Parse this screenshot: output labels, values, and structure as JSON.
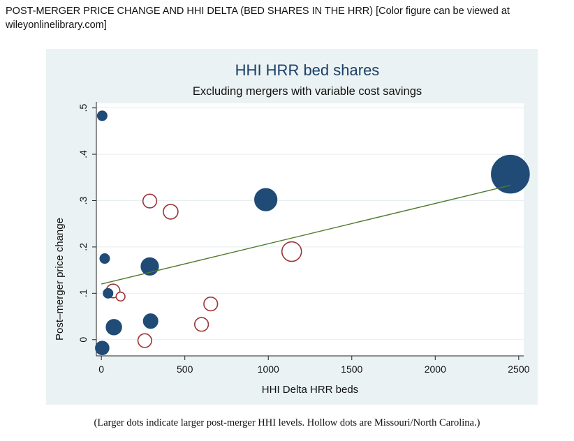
{
  "caption": "POST-MERGER PRICE CHANGE AND HHI DELTA (BED SHARES IN THE HRR)  [Color figure can be viewed at wileyonlinelibrary.com]",
  "note": "(Larger dots indicate larger post-merger HHI levels. Hollow dots are Missouri/North Carolina.)",
  "colors": {
    "filled": "#1f4b76",
    "hollow": "#9a3436",
    "fit": "#4f7a2c",
    "background": "#eaf2f3",
    "grid": "#f7fafa"
  },
  "chart_data": {
    "type": "scatter",
    "title": "HHI HRR bed shares",
    "subtitle": "Excluding mergers with variable cost savings",
    "xlabel": "HHI Delta HRR beds",
    "ylabel": "Post–merger price change",
    "xlim": [
      -30,
      2530
    ],
    "ylim": [
      -0.035,
      0.51
    ],
    "xticks": [
      0,
      500,
      1000,
      1500,
      2000,
      2500
    ],
    "xtick_labels": [
      "0",
      "500",
      "1000",
      "1500",
      "2000",
      "2500"
    ],
    "yticks": [
      0,
      0.1,
      0.2,
      0.3,
      0.4,
      0.5
    ],
    "ytick_labels": [
      "0",
      ".1",
      ".2",
      ".3",
      ".4",
      ".5"
    ],
    "grid": true,
    "marker_size": "post-merger HHI level",
    "points": [
      {
        "x": 5,
        "y": 0.483,
        "hollow": false,
        "size": 1
      },
      {
        "x": 20,
        "y": 0.175,
        "hollow": false,
        "size": 1
      },
      {
        "x": 40,
        "y": 0.1,
        "hollow": false,
        "size": 1
      },
      {
        "x": 5,
        "y": -0.018,
        "hollow": false,
        "size": 1.4
      },
      {
        "x": 75,
        "y": 0.027,
        "hollow": false,
        "size": 1.6
      },
      {
        "x": 290,
        "y": 0.158,
        "hollow": false,
        "size": 1.8
      },
      {
        "x": 295,
        "y": 0.04,
        "hollow": false,
        "size": 1.5
      },
      {
        "x": 985,
        "y": 0.302,
        "hollow": false,
        "size": 2.3
      },
      {
        "x": 2450,
        "y": 0.357,
        "hollow": false,
        "size": 3.9
      },
      {
        "x": 290,
        "y": 0.299,
        "hollow": true,
        "size": 1.4
      },
      {
        "x": 415,
        "y": 0.276,
        "hollow": true,
        "size": 1.5
      },
      {
        "x": 70,
        "y": 0.105,
        "hollow": true,
        "size": 1.4
      },
      {
        "x": 115,
        "y": 0.093,
        "hollow": true,
        "size": 0.9
      },
      {
        "x": 260,
        "y": -0.002,
        "hollow": true,
        "size": 1.4
      },
      {
        "x": 600,
        "y": 0.033,
        "hollow": true,
        "size": 1.4
      },
      {
        "x": 655,
        "y": 0.077,
        "hollow": true,
        "size": 1.4
      },
      {
        "x": 1140,
        "y": 0.19,
        "hollow": true,
        "size": 2.0
      }
    ],
    "fit_line": {
      "x": [
        0,
        2450
      ],
      "y": [
        0.12,
        0.333
      ]
    }
  }
}
